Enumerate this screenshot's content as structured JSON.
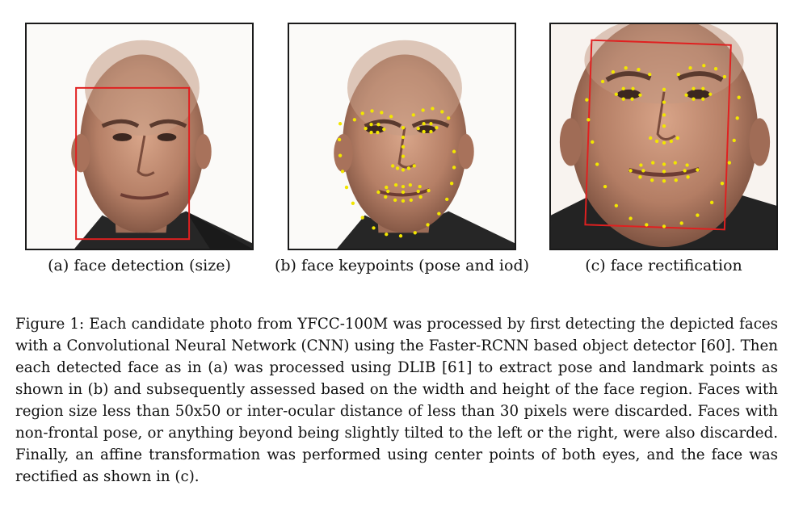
{
  "figure": {
    "panels": [
      {
        "id": "a",
        "subcaption": "(a) face detection (size)",
        "face_image": "bald older man frontal face photo",
        "overlay": "red detection box"
      },
      {
        "id": "b",
        "subcaption": "(b) face keypoints (pose and iod)",
        "face_image": "bald older man frontal face photo",
        "overlay": "yellow landmark points"
      },
      {
        "id": "c",
        "subcaption": "(c) face rectification",
        "face_image": "rectified face crop",
        "overlay": "red box and yellow landmark points"
      }
    ],
    "caption": "Figure 1: Each candidate photo from YFCC-100M was processed by first detecting the depicted faces with a Convolutional Neural Network (CNN) using the Faster-RCNN based object detector [60]. Then each detected face as in (a) was processed using DLIB [61] to extract pose and landmark points as shown in (b) and subsequently assessed based on the width and height of the face region. Faces with region size less than 50x50 or inter-ocular distance of less than 30 pixels were discarded. Faces with non-frontal pose, or anything beyond being slightly tilted to the left or the right, were also discarded. Finally, an affine transformation was performed using center points of both eyes, and the face was rectified as shown in (c).",
    "colors": {
      "detection_box": "#e02020",
      "landmarks": "#f2e600",
      "border": "#1a1a1a"
    }
  }
}
